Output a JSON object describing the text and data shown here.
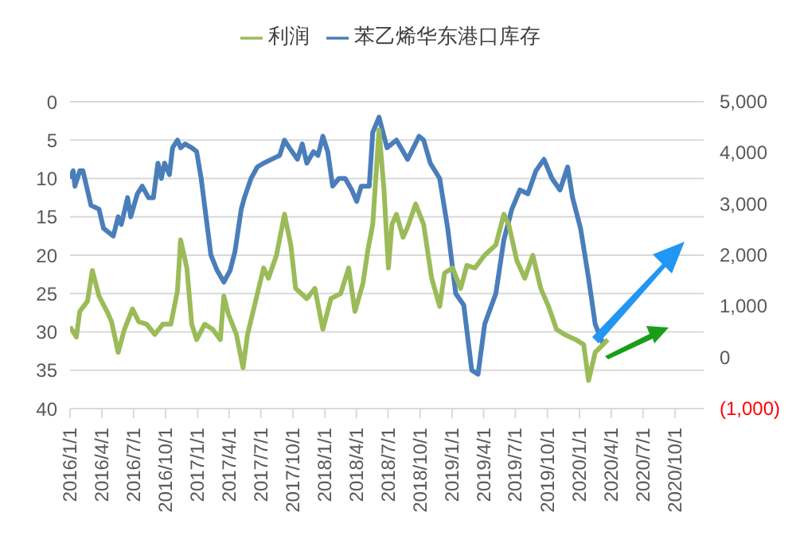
{
  "chart_data": {
    "type": "line",
    "xlim": [
      "2016-01-01",
      "2020-12-22"
    ],
    "xticks": [
      {
        "value": "2016-01-01",
        "label": "2016/1/1"
      },
      {
        "value": "2016-04-01",
        "label": "2016/4/1"
      },
      {
        "value": "2016-07-01",
        "label": "2016/7/1"
      },
      {
        "value": "2016-10-01",
        "label": "2016/10/1"
      },
      {
        "value": "2017-01-01",
        "label": "2017/1/1"
      },
      {
        "value": "2017-04-01",
        "label": "2017/4/1"
      },
      {
        "value": "2017-07-01",
        "label": "2017/7/1"
      },
      {
        "value": "2017-10-01",
        "label": "2017/10/1"
      },
      {
        "value": "2018-01-01",
        "label": "2018/1/1"
      },
      {
        "value": "2018-04-01",
        "label": "2018/4/1"
      },
      {
        "value": "2018-07-01",
        "label": "2018/7/1"
      },
      {
        "value": "2018-10-01",
        "label": "2018/10/1"
      },
      {
        "value": "2019-01-01",
        "label": "2019/1/1"
      },
      {
        "value": "2019-04-01",
        "label": "2019/4/1"
      },
      {
        "value": "2019-07-01",
        "label": "2019/7/1"
      },
      {
        "value": "2019-10-01",
        "label": "2019/10/1"
      },
      {
        "value": "2020-01-01",
        "label": "2020/1/1"
      },
      {
        "value": "2020-04-01",
        "label": "2020/4/1"
      },
      {
        "value": "2020-07-01",
        "label": "2020/7/1"
      },
      {
        "value": "2020-10-01",
        "label": "2020/10/1"
      }
    ],
    "ylim": [
      40,
      0
    ],
    "yticks": [
      0,
      5,
      10,
      15,
      20,
      25,
      30,
      35,
      40
    ],
    "y2lim": [
      -1000,
      5000
    ],
    "y2ticks": [
      {
        "value": 5000,
        "label": "5,000"
      },
      {
        "value": 4000,
        "label": "4,000"
      },
      {
        "value": 3000,
        "label": "3,000"
      },
      {
        "value": 2000,
        "label": "2,000"
      },
      {
        "value": 1000,
        "label": "1,000"
      },
      {
        "value": 0,
        "label": "0"
      },
      {
        "value": -1000,
        "label": "(1,000)"
      }
    ],
    "grid": "y",
    "legend": "top",
    "marker": "none",
    "line_style": "solid",
    "series": [
      {
        "name": "苯乙烯华东港口库存",
        "color": "#4a7ebb",
        "x": [
          "2016-01-01",
          "2016-01-10",
          "2016-01-15",
          "2016-01-29",
          "2016-02-07",
          "2016-03-01",
          "2016-03-24",
          "2016-04-06",
          "2016-04-20",
          "2016-05-04",
          "2016-05-18",
          "2016-05-27",
          "2016-06-14",
          "2016-06-23",
          "2016-07-12",
          "2016-07-26",
          "2016-08-13",
          "2016-08-27",
          "2016-09-09",
          "2016-09-19",
          "2016-09-28",
          "2016-10-12",
          "2016-10-21",
          "2016-11-04",
          "2016-11-13",
          "2016-11-26",
          "2016-12-15",
          "2016-12-29",
          "2017-01-11",
          "2017-01-25",
          "2017-02-08",
          "2017-02-26",
          "2017-03-17",
          "2017-04-04",
          "2017-04-18",
          "2017-05-06",
          "2017-05-15",
          "2017-06-03",
          "2017-06-21",
          "2017-07-09",
          "2017-08-01",
          "2017-08-24",
          "2017-09-07",
          "2017-09-21",
          "2017-10-14",
          "2017-10-28",
          "2017-11-10",
          "2017-11-29",
          "2017-12-12",
          "2017-12-26",
          "2018-01-09",
          "2018-01-23",
          "2018-02-10",
          "2018-02-28",
          "2018-03-19",
          "2018-04-02",
          "2018-04-15",
          "2018-05-08",
          "2018-05-18",
          "2018-06-05",
          "2018-06-28",
          "2018-07-25",
          "2018-08-26",
          "2018-09-28",
          "2018-10-11",
          "2018-10-30",
          "2018-11-26",
          "2018-12-19",
          "2019-01-11",
          "2019-02-03",
          "2019-02-26",
          "2019-03-16",
          "2019-04-04",
          "2019-05-06",
          "2019-05-29",
          "2019-06-21",
          "2019-07-14",
          "2019-08-06",
          "2019-08-29",
          "2019-09-21",
          "2019-10-14",
          "2019-11-06",
          "2019-11-28",
          "2019-12-12",
          "2020-01-04",
          "2020-01-27",
          "2020-02-15",
          "2020-03-08"
        ],
        "values": [
          10,
          9,
          11,
          9,
          9,
          13.5,
          14,
          16.5,
          17,
          17.5,
          15,
          16,
          12.5,
          15,
          12,
          11,
          12.5,
          12.5,
          8,
          10,
          8,
          9.5,
          6,
          5,
          6,
          5.5,
          6,
          6.5,
          10,
          15,
          20,
          22,
          23.5,
          22,
          19.5,
          14,
          12.5,
          10,
          8.5,
          8,
          7.5,
          7,
          5,
          6,
          7.5,
          5.5,
          8,
          6.5,
          7,
          4.5,
          6.5,
          11,
          10,
          10,
          11.5,
          13,
          11,
          11,
          4,
          2,
          6,
          5,
          7.5,
          4.5,
          5,
          8,
          10,
          16.5,
          25,
          26.5,
          35,
          35.5,
          29,
          25,
          18,
          14,
          11.5,
          12,
          9,
          7.5,
          10,
          11.5,
          8.5,
          12.5,
          16.5,
          23,
          29,
          31.5
        ]
      },
      {
        "name": "利润",
        "color": "#9bbb59",
        "axis": "y2",
        "x": [
          "2016-01-01",
          "2016-01-19",
          "2016-01-29",
          "2016-02-20",
          "2016-03-05",
          "2016-03-24",
          "2016-04-16",
          "2016-04-29",
          "2016-05-18",
          "2016-06-05",
          "2016-06-28",
          "2016-07-16",
          "2016-08-08",
          "2016-08-31",
          "2016-09-23",
          "2016-10-16",
          "2016-11-04",
          "2016-11-13",
          "2016-12-01",
          "2016-12-15",
          "2016-12-29",
          "2017-01-21",
          "2017-02-13",
          "2017-03-07",
          "2017-03-17",
          "2017-03-30",
          "2017-04-22",
          "2017-05-11",
          "2017-05-24",
          "2017-06-16",
          "2017-07-09",
          "2017-07-23",
          "2017-08-15",
          "2017-09-07",
          "2017-09-25",
          "2017-10-09",
          "2017-11-10",
          "2017-12-03",
          "2017-12-26",
          "2018-01-18",
          "2018-02-15",
          "2018-03-10",
          "2018-03-28",
          "2018-04-20",
          "2018-05-04",
          "2018-05-18",
          "2018-06-05",
          "2018-06-19",
          "2018-07-02",
          "2018-07-12",
          "2018-07-25",
          "2018-08-13",
          "2018-08-26",
          "2018-09-18",
          "2018-10-11",
          "2018-11-03",
          "2018-11-26",
          "2018-12-10",
          "2019-01-02",
          "2019-01-25",
          "2019-02-12",
          "2019-03-07",
          "2019-04-04",
          "2019-05-06",
          "2019-05-29",
          "2019-06-12",
          "2019-07-05",
          "2019-07-28",
          "2019-08-20",
          "2019-09-12",
          "2019-10-04",
          "2019-10-27",
          "2019-11-19",
          "2019-12-21",
          "2020-01-13",
          "2020-01-27",
          "2020-02-15",
          "2020-03-08",
          "2020-03-22"
        ],
        "values": [
          600,
          400,
          900,
          1100,
          1700,
          1200,
          900,
          700,
          100,
          550,
          950,
          700,
          650,
          450,
          650,
          650,
          1300,
          2300,
          1750,
          650,
          350,
          650,
          550,
          350,
          1200,
          850,
          450,
          -200,
          450,
          1100,
          1750,
          1550,
          2000,
          2800,
          2200,
          1350,
          1150,
          1350,
          550,
          1150,
          1250,
          1750,
          900,
          1450,
          2100,
          2600,
          4450,
          3300,
          1750,
          2600,
          2800,
          2350,
          2550,
          3000,
          2600,
          1550,
          1000,
          1650,
          1750,
          1350,
          1800,
          1750,
          2000,
          2200,
          2800,
          2600,
          1900,
          1550,
          2000,
          1350,
          1000,
          550,
          450,
          350,
          250,
          -450,
          100,
          250,
          350
        ]
      }
    ]
  }
}
